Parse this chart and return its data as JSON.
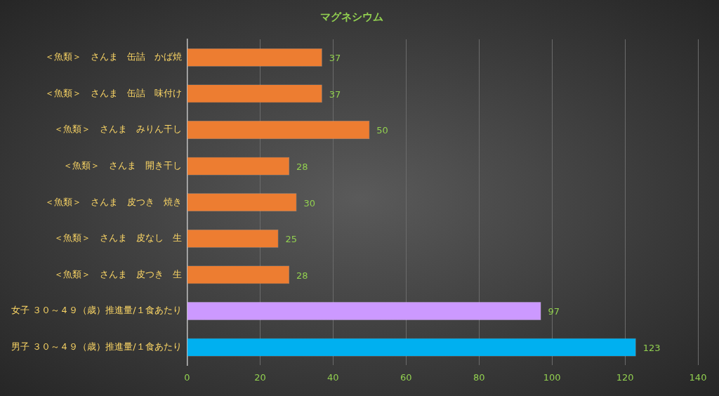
{
  "chart_data": {
    "type": "bar",
    "title": "マグネシウム",
    "orientation": "horizontal",
    "categories": [
      "＜魚類＞　さんま　缶詰　かば焼",
      "＜魚類＞　さんま　缶詰　味付け",
      "＜魚類＞　さんま　みりん干し",
      "＜魚類＞　さんま　開き干し",
      "＜魚類＞　さんま　皮つき　焼き",
      "＜魚類＞　さんま　皮なし　生",
      "＜魚類＞　さんま　皮つき　生",
      "女子 ３０～４９（歳）推進量/１食あたり",
      "男子 ３０～４９（歳）推進量/１食あたり"
    ],
    "values": [
      37,
      37,
      50,
      28,
      30,
      25,
      28,
      97,
      123
    ],
    "colors": [
      "#ed7d31",
      "#ed7d31",
      "#ed7d31",
      "#ed7d31",
      "#ed7d31",
      "#ed7d31",
      "#ed7d31",
      "#cc99ff",
      "#00b0f0"
    ],
    "xlim": [
      0,
      140
    ],
    "xticks": [
      0,
      20,
      40,
      60,
      80,
      100,
      120,
      140
    ],
    "grid": "x",
    "data_labels": true,
    "legend": false
  }
}
